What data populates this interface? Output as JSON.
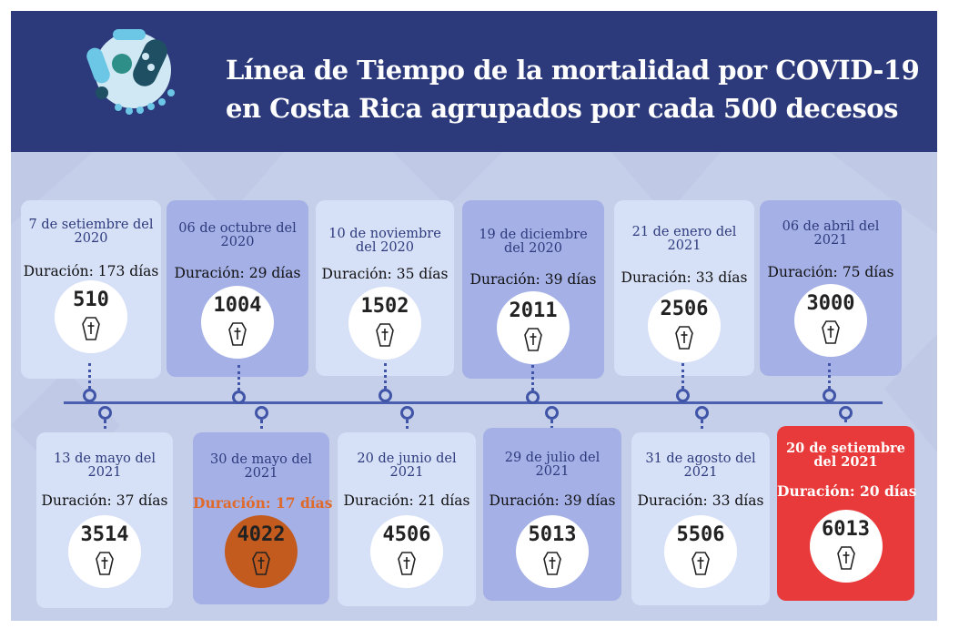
{
  "title": {
    "line1": "Línea de Tiempo de la mortalidad por COVID-19",
    "line2": "en Costa Rica agrupados por cada 500 decesos"
  },
  "colors": {
    "header": "#2c3a7c",
    "background": "#c5cfe9",
    "card_light": "#d6e0f7",
    "card_medium": "#a4b0e6",
    "highlight_orange": "#c45b1e",
    "highlight_red": "#e83a3a"
  },
  "icons": {
    "logo": "virus-icon",
    "marker": "coffin-cross-icon"
  },
  "events": [
    {
      "date_line1": "7 de setiembre del",
      "date_line2": "2020",
      "duration": "Duración: 173 días",
      "count": "510"
    },
    {
      "date_line1": "06 de octubre del",
      "date_line2": "2020",
      "duration": "Duración: 29 días",
      "count": "1004"
    },
    {
      "date_line1": "10 de noviembre",
      "date_line2": "del 2020",
      "duration": "Duración: 35 días",
      "count": "1502"
    },
    {
      "date_line1": "19 de diciembre",
      "date_line2": "del 2020",
      "duration": "Duración: 39 días",
      "count": "2011"
    },
    {
      "date_line1": "21 de enero del",
      "date_line2": "2021",
      "duration": "Duración: 33 días",
      "count": "2506"
    },
    {
      "date_line1": "06 de abril del",
      "date_line2": "2021",
      "duration": "Duración: 75 días",
      "count": "3000"
    },
    {
      "date_line1": "13 de mayo del",
      "date_line2": "2021",
      "duration": "Duración: 37 días",
      "count": "3514"
    },
    {
      "date_line1": "30 de mayo del",
      "date_line2": "2021",
      "duration": "Duración: 17 días",
      "count": "4022"
    },
    {
      "date_line1": "20 de junio del",
      "date_line2": "2021",
      "duration": "Duración: 21 días",
      "count": "4506"
    },
    {
      "date_line1": "29 de julio del",
      "date_line2": "2021",
      "duration": "Duración: 39 días",
      "count": "5013"
    },
    {
      "date_line1": "31 de agosto del",
      "date_line2": "2021",
      "duration": "Duración: 33 días",
      "count": "5506"
    },
    {
      "date_line1": "20 de setiembre",
      "date_line2": "del 2021",
      "duration": "Duración: 20 días",
      "count": "6013"
    }
  ]
}
